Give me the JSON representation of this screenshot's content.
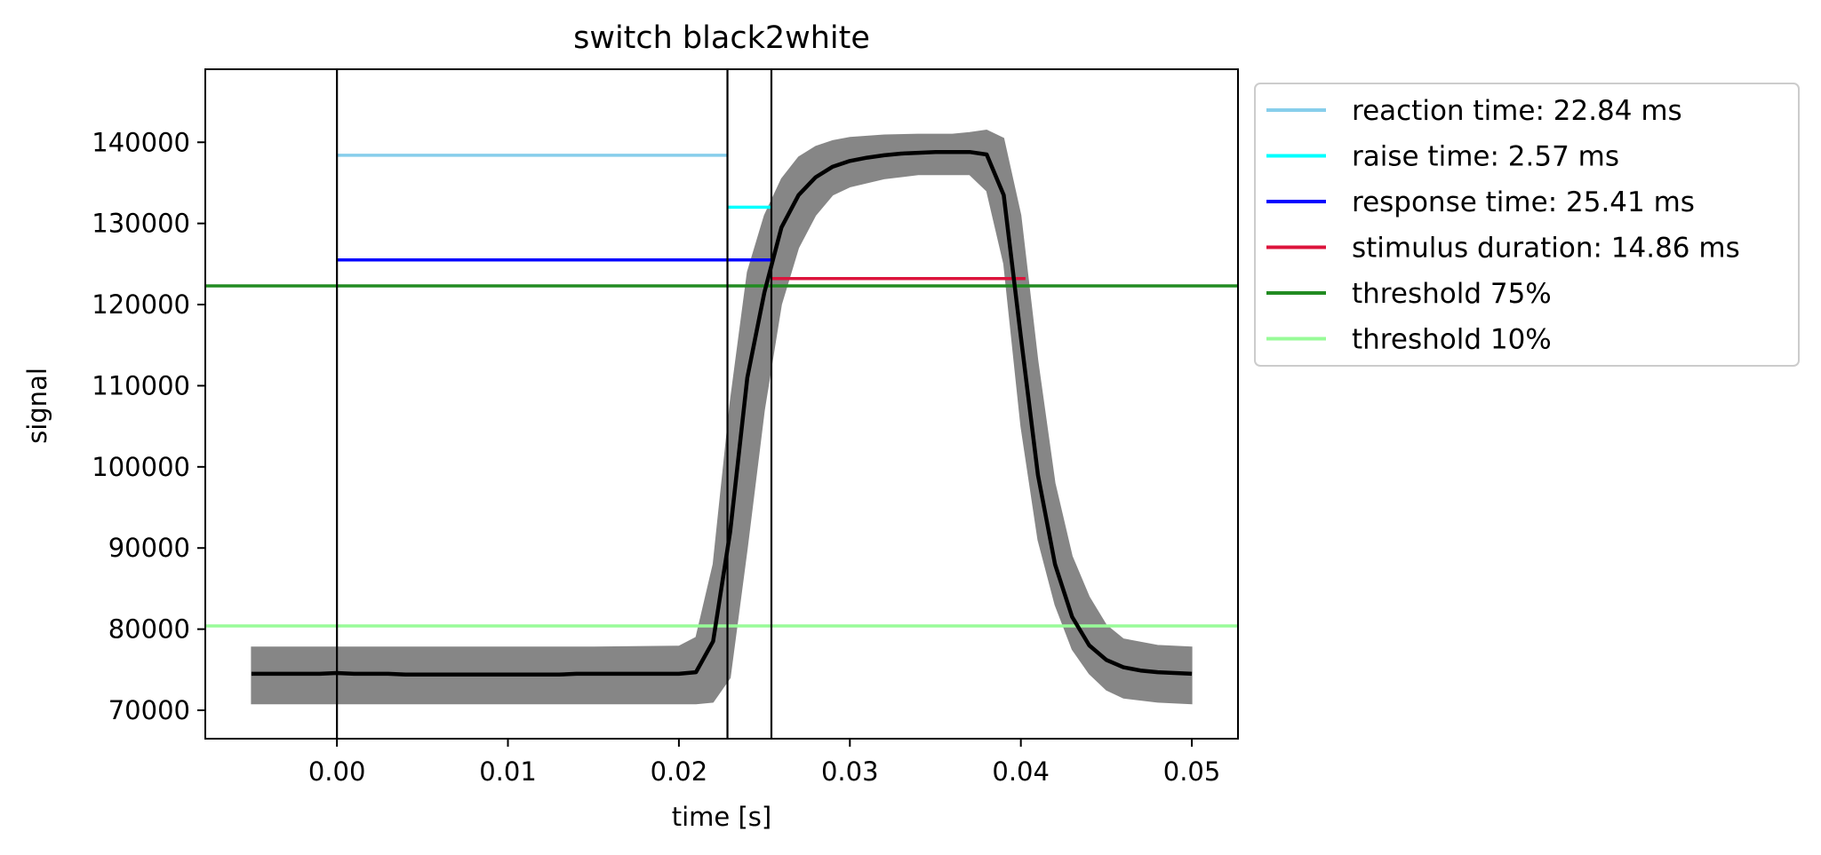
{
  "chart_data": {
    "type": "line",
    "title": "switch black2white",
    "xlabel": "time [s]",
    "ylabel": "signal",
    "xlim": [
      -0.0077,
      0.0527
    ],
    "ylim": [
      66500,
      149000
    ],
    "xticks": [
      0.0,
      0.01,
      0.02,
      0.03,
      0.04,
      0.05
    ],
    "xtick_labels": [
      "0.00",
      "0.01",
      "0.02",
      "0.03",
      "0.04",
      "0.05"
    ],
    "yticks": [
      70000,
      80000,
      90000,
      100000,
      110000,
      120000,
      130000,
      140000
    ],
    "ytick_labels": [
      "70000",
      "80000",
      "90000",
      "100000",
      "110000",
      "120000",
      "130000",
      "140000"
    ],
    "grid": false,
    "legend_placement": "outside right, top",
    "colors": {
      "raw_traces": "#808080",
      "mean_trace": "#000000",
      "reaction_time": "#87ceeb",
      "raise_time": "#00ffff",
      "response_time": "#0000ff",
      "stimulus_duration": "#dc143c",
      "threshold_75": "#228b22",
      "threshold_10": "#98fb98"
    },
    "mean_trace": {
      "x": [
        -0.005,
        -0.004,
        -0.003,
        -0.002,
        -0.001,
        0.0,
        0.001,
        0.002,
        0.003,
        0.004,
        0.005,
        0.006,
        0.007,
        0.008,
        0.009,
        0.01,
        0.011,
        0.012,
        0.013,
        0.014,
        0.015,
        0.016,
        0.017,
        0.018,
        0.019,
        0.02,
        0.021,
        0.022,
        0.023,
        0.024,
        0.025,
        0.026,
        0.027,
        0.028,
        0.029,
        0.03,
        0.031,
        0.032,
        0.033,
        0.034,
        0.035,
        0.036,
        0.037,
        0.038,
        0.039,
        0.04,
        0.041,
        0.042,
        0.043,
        0.044,
        0.045,
        0.046,
        0.047,
        0.048,
        0.049,
        0.05
      ],
      "y": [
        74500,
        74500,
        74500,
        74500,
        74500,
        74600,
        74500,
        74500,
        74500,
        74400,
        74400,
        74400,
        74400,
        74400,
        74400,
        74400,
        74400,
        74400,
        74400,
        74500,
        74500,
        74500,
        74500,
        74500,
        74500,
        74500,
        74700,
        78500,
        92000,
        111000,
        121500,
        129500,
        133500,
        135700,
        137000,
        137700,
        138100,
        138400,
        138600,
        138700,
        138800,
        138800,
        138800,
        138500,
        133500,
        116000,
        99000,
        88000,
        81500,
        78000,
        76200,
        75300,
        74900,
        74700,
        74600,
        74500
      ]
    },
    "raw_band": {
      "x": [
        -0.005,
        0.0,
        0.005,
        0.01,
        0.015,
        0.02,
        0.021,
        0.022,
        0.023,
        0.024,
        0.025,
        0.026,
        0.027,
        0.028,
        0.029,
        0.03,
        0.032,
        0.034,
        0.036,
        0.037,
        0.038,
        0.039,
        0.04,
        0.041,
        0.042,
        0.043,
        0.044,
        0.045,
        0.046,
        0.048,
        0.05
      ],
      "upper": [
        77800,
        77800,
        77800,
        77800,
        77800,
        77900,
        79000,
        88000,
        108000,
        124000,
        131000,
        135500,
        138200,
        139500,
        140200,
        140600,
        140900,
        141000,
        141000,
        141200,
        141500,
        140500,
        131000,
        113000,
        98000,
        89000,
        84000,
        80500,
        78800,
        78000,
        77800
      ],
      "lower": [
        70800,
        70800,
        70800,
        70800,
        70800,
        70800,
        70800,
        71000,
        74000,
        90000,
        107000,
        120000,
        127000,
        131000,
        133500,
        134500,
        135500,
        136000,
        136000,
        136000,
        134000,
        125000,
        105000,
        91000,
        83000,
        77500,
        74500,
        72500,
        71500,
        71000,
        70800
      ]
    },
    "vertical_lines": [
      0.0,
      0.02284,
      0.02541
    ],
    "interval_lines": [
      {
        "name": "reaction time: 22.84 ms",
        "x_start": 0.0,
        "x_end": 0.02284,
        "y": 138400
      },
      {
        "name": "raise time: 2.57 ms",
        "x_start": 0.02284,
        "x_end": 0.02541,
        "y": 132000
      },
      {
        "name": "response time: 25.41 ms",
        "x_start": 0.0,
        "x_end": 0.02541,
        "y": 125500
      },
      {
        "name": "stimulus duration: 14.86 ms",
        "x_start": 0.02541,
        "x_end": 0.04027,
        "y": 123200
      }
    ],
    "threshold_lines": [
      {
        "name": "threshold 75%",
        "y": 122300
      },
      {
        "name": "threshold 10%",
        "y": 80400
      }
    ],
    "legend": [
      {
        "label": "reaction time: 22.84 ms",
        "color": "#87ceeb"
      },
      {
        "label": "raise time: 2.57 ms",
        "color": "#00ffff"
      },
      {
        "label": "response time: 25.41 ms",
        "color": "#0000ff"
      },
      {
        "label": "stimulus duration: 14.86 ms",
        "color": "#dc143c"
      },
      {
        "label": "threshold 75%",
        "color": "#228b22"
      },
      {
        "label": "threshold 10%",
        "color": "#98fb98"
      }
    ]
  }
}
